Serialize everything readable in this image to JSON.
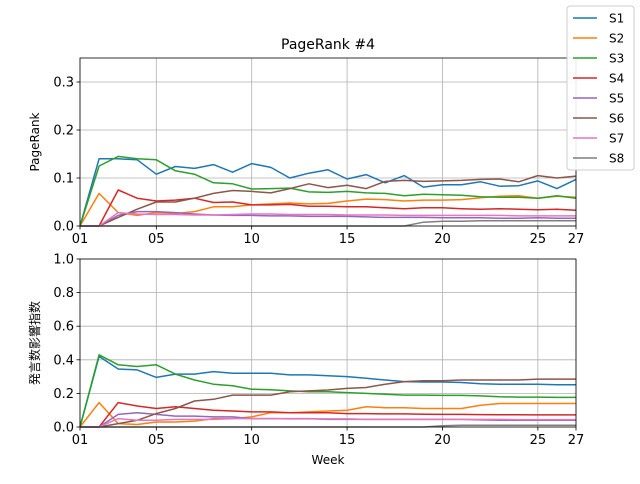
{
  "figure_title": "PageRank #4",
  "legend": {
    "placement": "top-right",
    "entries": [
      {
        "name": "S1",
        "color": "#1f77b4"
      },
      {
        "name": "S2",
        "color": "#ff7f0e"
      },
      {
        "name": "S3",
        "color": "#2ca02c"
      },
      {
        "name": "S4",
        "color": "#d62728"
      },
      {
        "name": "S5",
        "color": "#9467bd"
      },
      {
        "name": "S6",
        "color": "#8c564b"
      },
      {
        "name": "S7",
        "color": "#e377c2"
      },
      {
        "name": "S8",
        "color": "#7f7f7f"
      }
    ]
  },
  "chart_data": [
    {
      "type": "line",
      "title": "PageRank #4",
      "xlabel": "",
      "ylabel": "PageRank",
      "grid": true,
      "xlim": [
        1,
        27
      ],
      "ylim": [
        0,
        0.35
      ],
      "x_ticks": [
        1,
        5,
        10,
        15,
        20,
        25,
        27
      ],
      "x_tick_labels": [
        "01",
        "05",
        "10",
        "15",
        "20",
        "25",
        "27"
      ],
      "y_ticks": [
        0.0,
        0.1,
        0.2,
        0.3
      ],
      "y_tick_labels": [
        "0.0",
        "0.1",
        "0.2",
        "0.3"
      ],
      "x": [
        1,
        2,
        3,
        4,
        5,
        6,
        7,
        8,
        9,
        10,
        11,
        12,
        13,
        14,
        15,
        16,
        17,
        18,
        19,
        20,
        21,
        22,
        23,
        24,
        25,
        26,
        27
      ],
      "series": [
        {
          "name": "S1",
          "values": [
            0.0,
            0.14,
            0.14,
            0.138,
            0.108,
            0.124,
            0.12,
            0.128,
            0.112,
            0.13,
            0.122,
            0.1,
            0.11,
            0.117,
            0.098,
            0.107,
            0.09,
            0.105,
            0.081,
            0.086,
            0.086,
            0.092,
            0.083,
            0.084,
            0.094,
            0.078,
            0.097
          ]
        },
        {
          "name": "S2",
          "values": [
            0.0,
            0.068,
            0.028,
            0.022,
            0.028,
            0.026,
            0.03,
            0.04,
            0.04,
            0.044,
            0.046,
            0.048,
            0.046,
            0.047,
            0.052,
            0.056,
            0.055,
            0.052,
            0.054,
            0.054,
            0.055,
            0.059,
            0.062,
            0.063,
            0.058,
            0.062,
            0.06
          ]
        },
        {
          "name": "S3",
          "values": [
            0.0,
            0.125,
            0.145,
            0.14,
            0.138,
            0.115,
            0.108,
            0.09,
            0.088,
            0.077,
            0.078,
            0.079,
            0.071,
            0.07,
            0.072,
            0.069,
            0.068,
            0.063,
            0.066,
            0.065,
            0.064,
            0.061,
            0.06,
            0.06,
            0.058,
            0.063,
            0.058
          ]
        },
        {
          "name": "S4",
          "values": [
            0.0,
            0.0,
            0.075,
            0.058,
            0.052,
            0.054,
            0.058,
            0.049,
            0.05,
            0.044,
            0.044,
            0.045,
            0.041,
            0.041,
            0.04,
            0.04,
            0.038,
            0.036,
            0.038,
            0.038,
            0.036,
            0.035,
            0.036,
            0.035,
            0.034,
            0.035,
            0.033
          ]
        },
        {
          "name": "S5",
          "values": [
            0.0,
            0.0,
            0.022,
            0.03,
            0.03,
            0.028,
            0.025,
            0.023,
            0.022,
            0.022,
            0.021,
            0.021,
            0.02,
            0.02,
            0.02,
            0.019,
            0.018,
            0.018,
            0.018,
            0.017,
            0.017,
            0.017,
            0.016,
            0.016,
            0.017,
            0.016,
            0.016
          ]
        },
        {
          "name": "S6",
          "values": [
            0.0,
            0.0,
            0.018,
            0.035,
            0.05,
            0.05,
            0.058,
            0.068,
            0.074,
            0.072,
            0.069,
            0.078,
            0.088,
            0.08,
            0.085,
            0.078,
            0.093,
            0.095,
            0.093,
            0.094,
            0.095,
            0.097,
            0.098,
            0.092,
            0.105,
            0.1,
            0.104
          ]
        },
        {
          "name": "S7",
          "values": [
            0.0,
            0.0,
            0.028,
            0.025,
            0.024,
            0.024,
            0.023,
            0.023,
            0.024,
            0.025,
            0.025,
            0.024,
            0.024,
            0.024,
            0.023,
            0.023,
            0.023,
            0.022,
            0.022,
            0.022,
            0.022,
            0.022,
            0.022,
            0.021,
            0.021,
            0.021,
            0.021
          ]
        },
        {
          "name": "S8",
          "values": [
            0.0,
            0.0,
            0.0,
            0.0,
            0.0,
            0.0,
            0.0,
            0.0,
            0.0,
            0.0,
            0.0,
            0.0,
            0.0,
            0.0,
            0.0,
            0.0,
            0.0,
            0.0,
            0.008,
            0.01,
            0.01,
            0.011,
            0.011,
            0.011,
            0.011,
            0.011,
            0.011
          ]
        }
      ]
    },
    {
      "type": "line",
      "title": "",
      "xlabel": "Week",
      "ylabel": "発言数影響指数",
      "grid": true,
      "xlim": [
        1,
        27
      ],
      "ylim": [
        0,
        1.0
      ],
      "x_ticks": [
        1,
        5,
        10,
        15,
        20,
        25,
        27
      ],
      "x_tick_labels": [
        "01",
        "05",
        "10",
        "15",
        "20",
        "25",
        "27"
      ],
      "y_ticks": [
        0.0,
        0.2,
        0.4,
        0.6,
        0.8,
        1.0
      ],
      "y_tick_labels": [
        "0.0",
        "0.2",
        "0.4",
        "0.6",
        "0.8",
        "1.0"
      ],
      "x": [
        1,
        2,
        3,
        4,
        5,
        6,
        7,
        8,
        9,
        10,
        11,
        12,
        13,
        14,
        15,
        16,
        17,
        18,
        19,
        20,
        21,
        22,
        23,
        24,
        25,
        26,
        27
      ],
      "series": [
        {
          "name": "S1",
          "values": [
            0.0,
            0.42,
            0.345,
            0.34,
            0.295,
            0.315,
            0.315,
            0.33,
            0.32,
            0.32,
            0.32,
            0.31,
            0.31,
            0.305,
            0.3,
            0.29,
            0.28,
            0.27,
            0.268,
            0.268,
            0.265,
            0.258,
            0.255,
            0.255,
            0.255,
            0.252,
            0.252
          ]
        },
        {
          "name": "S2",
          "values": [
            0.0,
            0.145,
            0.02,
            0.015,
            0.03,
            0.03,
            0.035,
            0.05,
            0.05,
            0.06,
            0.085,
            0.085,
            0.09,
            0.095,
            0.1,
            0.12,
            0.115,
            0.115,
            0.11,
            0.11,
            0.11,
            0.13,
            0.14,
            0.14,
            0.14,
            0.14,
            0.14
          ]
        },
        {
          "name": "S3",
          "values": [
            0.0,
            0.43,
            0.37,
            0.36,
            0.37,
            0.315,
            0.28,
            0.255,
            0.245,
            0.225,
            0.222,
            0.215,
            0.21,
            0.21,
            0.205,
            0.2,
            0.195,
            0.19,
            0.19,
            0.188,
            0.188,
            0.185,
            0.18,
            0.178,
            0.178,
            0.176,
            0.176
          ]
        },
        {
          "name": "S4",
          "values": [
            0.0,
            0.0,
            0.145,
            0.125,
            0.11,
            0.12,
            0.11,
            0.1,
            0.095,
            0.09,
            0.09,
            0.085,
            0.085,
            0.085,
            0.08,
            0.08,
            0.078,
            0.078,
            0.076,
            0.075,
            0.075,
            0.074,
            0.073,
            0.073,
            0.072,
            0.072,
            0.072
          ]
        },
        {
          "name": "S5",
          "values": [
            0.0,
            0.0,
            0.075,
            0.085,
            0.075,
            0.065,
            0.065,
            0.06,
            0.06,
            0.05,
            0.05,
            0.05,
            0.05,
            0.045,
            0.045,
            0.045,
            0.045,
            0.045,
            0.045,
            0.045,
            0.045,
            0.042,
            0.04,
            0.04,
            0.04,
            0.04,
            0.04
          ]
        },
        {
          "name": "S6",
          "values": [
            0.0,
            0.0,
            0.02,
            0.04,
            0.08,
            0.11,
            0.155,
            0.165,
            0.19,
            0.19,
            0.19,
            0.21,
            0.215,
            0.22,
            0.23,
            0.235,
            0.255,
            0.27,
            0.275,
            0.275,
            0.28,
            0.28,
            0.28,
            0.28,
            0.285,
            0.285,
            0.285
          ]
        },
        {
          "name": "S7",
          "values": [
            0.0,
            0.0,
            0.05,
            0.04,
            0.04,
            0.045,
            0.045,
            0.045,
            0.05,
            0.05,
            0.05,
            0.048,
            0.048,
            0.048,
            0.048,
            0.045,
            0.045,
            0.045,
            0.045,
            0.045,
            0.045,
            0.045,
            0.045,
            0.044,
            0.044,
            0.044,
            0.044
          ]
        },
        {
          "name": "S8",
          "values": [
            0.0,
            0.0,
            0.0,
            0.0,
            0.0,
            0.0,
            0.0,
            0.0,
            0.0,
            0.0,
            0.0,
            0.0,
            0.0,
            0.0,
            0.0,
            0.0,
            0.0,
            0.0,
            0.0,
            0.008,
            0.01,
            0.01,
            0.01,
            0.01,
            0.01,
            0.01,
            0.01
          ]
        }
      ]
    }
  ]
}
